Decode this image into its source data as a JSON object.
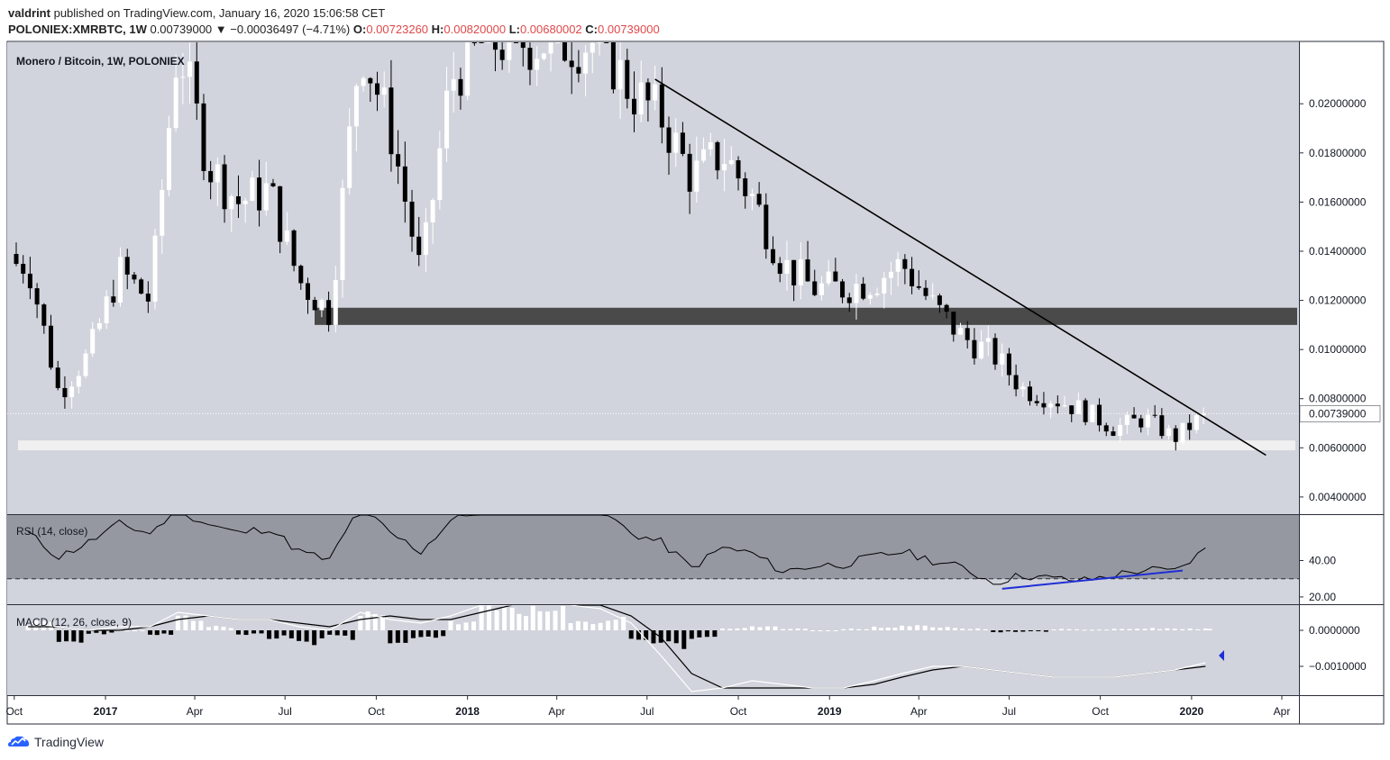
{
  "header": {
    "author": "valdrint",
    "published_text": "published on TradingView.com, January 16, 2020 15:06:58 CET",
    "symbol": "POLONIEX:XMRBTC, 1W",
    "last_price": "0.00739000",
    "change": "▼ −0.00036497 (−4.71%)",
    "o_label": "O:",
    "o_value": "0.00723260",
    "h_label": "H:",
    "h_value": "0.00820000",
    "l_label": "L:",
    "l_value": "0.00680002",
    "c_label": "C:",
    "c_value": "0.00739000"
  },
  "colors": {
    "background": "#d1d4dc",
    "rsi_band": "#9598a1",
    "candle_up": "#ffffff",
    "candle_down": "#000000",
    "resistance_zone": "#4a4a4a",
    "support_zone": "#f0f0f0",
    "divergence_line": "#1f2ed6",
    "price_tag": "#ffffff"
  },
  "chart_data": [
    {
      "type": "candlestick",
      "title": "Monero / Bitcoin, 1W, POLONIEX",
      "y_ticks": [
        "0.02000000",
        "0.01800000",
        "0.01600000",
        "0.01400000",
        "0.01200000",
        "0.01000000",
        "0.00800000",
        "0.00600000",
        "0.00400000"
      ],
      "ylim": [
        0.0033,
        0.0225
      ],
      "current_price_label": "0.00739000",
      "current_price": 0.00739,
      "resistance_zone": [
        0.011,
        0.0117
      ],
      "support_zone": [
        0.0059,
        0.0063
      ],
      "trendline": {
        "from": [
          "2018-07-09",
          0.021
        ],
        "to": [
          "2020-03-16",
          0.0057
        ]
      },
      "candles_by_month": {
        "dates": [
          "2016-10",
          "2016-11",
          "2016-12",
          "2017-01",
          "2017-02",
          "2017-03",
          "2017-04",
          "2017-05",
          "2017-06",
          "2017-07",
          "2017-08",
          "2017-09",
          "2017-10",
          "2017-11",
          "2017-12",
          "2018-01",
          "2018-02",
          "2018-03",
          "2018-04",
          "2018-05",
          "2018-06",
          "2018-07",
          "2018-08",
          "2018-09",
          "2018-10",
          "2018-11",
          "2018-12",
          "2019-01",
          "2019-02",
          "2019-03",
          "2019-04",
          "2019-05",
          "2019-06",
          "2019-07",
          "2019-08",
          "2019-09",
          "2019-10",
          "2019-11",
          "2019-12",
          "2020-01"
        ],
        "close": [
          0.0135,
          0.0082,
          0.0098,
          0.0132,
          0.012,
          0.0225,
          0.0175,
          0.016,
          0.0165,
          0.0128,
          0.0115,
          0.0225,
          0.019,
          0.013,
          0.021,
          0.0225,
          0.0225,
          0.0225,
          0.0225,
          0.0225,
          0.0205,
          0.0195,
          0.017,
          0.018,
          0.0162,
          0.0135,
          0.0125,
          0.0125,
          0.0128,
          0.0135,
          0.0118,
          0.0105,
          0.0098,
          0.0084,
          0.008,
          0.0075,
          0.0068,
          0.0072,
          0.0064,
          0.00739
        ]
      }
    },
    {
      "type": "line",
      "title": "RSI (14, close)",
      "y_ticks": [
        "40.00",
        "20.00"
      ],
      "ylim": [
        16,
        65
      ],
      "band": [
        30,
        70
      ],
      "divergence_line": {
        "from": [
          "2019-06-24",
          24.5
        ],
        "to": [
          "2019-12-23",
          34.5
        ]
      },
      "values_by_month": {
        "dates": [
          "2016-10",
          "2016-11",
          "2016-12",
          "2017-01",
          "2017-02",
          "2017-03",
          "2017-04",
          "2017-05",
          "2017-06",
          "2017-07",
          "2017-08",
          "2017-09",
          "2017-10",
          "2017-11",
          "2017-12",
          "2018-01",
          "2018-02",
          "2018-03",
          "2018-04",
          "2018-05",
          "2018-06",
          "2018-07",
          "2018-08",
          "2018-09",
          "2018-10",
          "2018-11",
          "2018-12",
          "2019-01",
          "2019-02",
          "2019-03",
          "2019-04",
          "2019-05",
          "2019-06",
          "2019-07",
          "2019-08",
          "2019-09",
          "2019-10",
          "2019-11",
          "2019-12",
          "2020-01"
        ],
        "rsi": [
          55,
          42,
          50,
          60,
          55,
          68,
          60,
          55,
          58,
          45,
          40,
          70,
          55,
          45,
          62,
          68,
          70,
          70,
          70,
          68,
          55,
          50,
          36,
          47,
          44,
          34,
          37,
          38,
          42,
          45,
          40,
          36,
          28,
          32,
          30,
          29,
          32,
          35,
          34,
          46
        ]
      }
    },
    {
      "type": "histogram+line",
      "title": "MACD (12, 26, close, 9)",
      "y_ticks": [
        "0.0000000",
        "−0.0010000"
      ],
      "ylim": [
        -0.0018,
        0.0007
      ],
      "values_by_month": {
        "dates": [
          "2016-10",
          "2016-11",
          "2016-12",
          "2017-01",
          "2017-02",
          "2017-03",
          "2017-04",
          "2017-05",
          "2017-06",
          "2017-07",
          "2017-08",
          "2017-09",
          "2017-10",
          "2017-11",
          "2017-12",
          "2018-01",
          "2018-02",
          "2018-03",
          "2018-04",
          "2018-05",
          "2018-06",
          "2018-07",
          "2018-08",
          "2018-09",
          "2018-10",
          "2018-11",
          "2018-12",
          "2019-01",
          "2019-02",
          "2019-03",
          "2019-04",
          "2019-05",
          "2019-06",
          "2019-07",
          "2019-08",
          "2019-09",
          "2019-10",
          "2019-11",
          "2019-12",
          "2020-01"
        ],
        "histogram": [
          0.0002,
          -0.0003,
          -0.0001,
          0.0,
          -0.0001,
          0.0003,
          0.0001,
          -0.0001,
          -0.0002,
          -0.0003,
          -0.0002,
          0.0004,
          -0.0003,
          -0.0002,
          0.0002,
          0.0006,
          0.0006,
          0.0005,
          0.0002,
          0.0003,
          -0.0003,
          -0.0004,
          -0.0002,
          5e-05,
          8e-05,
          5e-05,
          0.0,
          4e-05,
          8e-05,
          0.00012,
          8e-05,
          4e-05,
          -4e-05,
          -3e-05,
          3e-05,
          2e-05,
          4e-05,
          5e-05,
          4e-05,
          5e-05
        ],
        "macd": [
          0.0002,
          0.0001,
          0.0,
          0.0001,
          0.0001,
          0.0005,
          0.0004,
          0.0003,
          0.0003,
          0.0001,
          0.0,
          0.0005,
          0.0003,
          0.0002,
          0.0004,
          0.0008,
          0.001,
          0.001,
          0.0008,
          0.0006,
          0.0002,
          -0.0007,
          -0.0017,
          -0.0016,
          -0.0014,
          -0.0015,
          -0.0016,
          -0.0016,
          -0.0014,
          -0.0012,
          -0.001,
          -0.001,
          -0.0011,
          -0.0012,
          -0.0013,
          -0.0013,
          -0.0013,
          -0.0012,
          -0.0011,
          -0.0009
        ],
        "signal": [
          0.0001,
          0.0001,
          0.0,
          0.0,
          0.0001,
          0.0003,
          0.0004,
          0.0003,
          0.0003,
          0.0002,
          0.0001,
          0.0003,
          0.0004,
          0.0003,
          0.0003,
          0.0005,
          0.0008,
          0.001,
          0.0009,
          0.0007,
          0.0004,
          -0.0002,
          -0.0012,
          -0.0016,
          -0.0016,
          -0.0016,
          -0.0016,
          -0.0016,
          -0.0015,
          -0.0013,
          -0.0011,
          -0.001,
          -0.0011,
          -0.0012,
          -0.0013,
          -0.0013,
          -0.0013,
          -0.0012,
          -0.0011,
          -0.001
        ]
      }
    }
  ],
  "time_axis": [
    {
      "label": "Oct",
      "date": "2016-10-01",
      "bold": false
    },
    {
      "label": "2017",
      "date": "2017-01-01",
      "bold": true
    },
    {
      "label": "Apr",
      "date": "2017-04-01",
      "bold": false
    },
    {
      "label": "Jul",
      "date": "2017-07-01",
      "bold": false
    },
    {
      "label": "Oct",
      "date": "2017-10-01",
      "bold": false
    },
    {
      "label": "2018",
      "date": "2018-01-01",
      "bold": true
    },
    {
      "label": "Apr",
      "date": "2018-04-01",
      "bold": false
    },
    {
      "label": "Jul",
      "date": "2018-07-01",
      "bold": false
    },
    {
      "label": "Oct",
      "date": "2018-10-01",
      "bold": false
    },
    {
      "label": "2019",
      "date": "2019-01-01",
      "bold": true
    },
    {
      "label": "Apr",
      "date": "2019-04-01",
      "bold": false
    },
    {
      "label": "Jul",
      "date": "2019-07-01",
      "bold": false
    },
    {
      "label": "Oct",
      "date": "2019-10-01",
      "bold": false
    },
    {
      "label": "2020",
      "date": "2020-01-01",
      "bold": true
    },
    {
      "label": "Apr",
      "date": "2020-04-01",
      "bold": false
    }
  ],
  "footer": {
    "brand": "TradingView"
  }
}
